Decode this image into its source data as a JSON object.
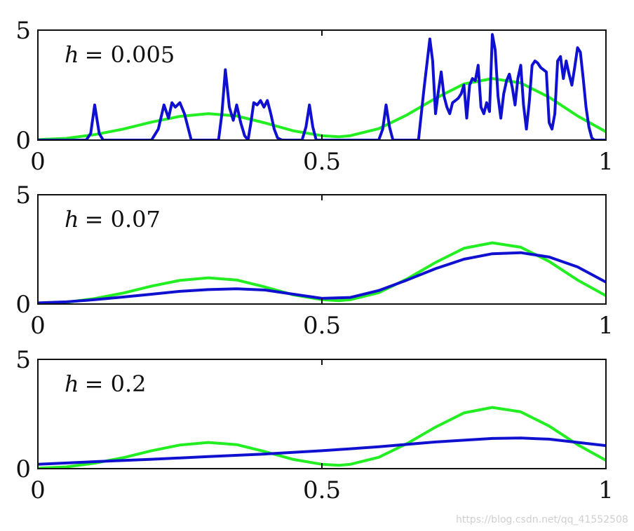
{
  "chart_data": [
    {
      "type": "line",
      "label": "h = 0.005",
      "label_var": "h",
      "label_value": "= 0.005",
      "xlim": [
        0,
        1
      ],
      "ylim": [
        0,
        5
      ],
      "xticks": [
        "0",
        "0.5",
        "1"
      ],
      "yticks": [
        "0",
        "5"
      ],
      "series": [
        {
          "color": "#22ee22",
          "x": [
            0,
            0.05,
            0.1,
            0.15,
            0.2,
            0.25,
            0.3,
            0.35,
            0.4,
            0.45,
            0.5,
            0.53,
            0.55,
            0.6,
            0.65,
            0.7,
            0.75,
            0.8,
            0.85,
            0.9,
            0.95,
            1.0
          ],
          "y": [
            0.02,
            0.08,
            0.25,
            0.5,
            0.82,
            1.08,
            1.2,
            1.1,
            0.78,
            0.42,
            0.2,
            0.15,
            0.2,
            0.52,
            1.15,
            1.9,
            2.55,
            2.8,
            2.6,
            1.95,
            1.1,
            0.38
          ]
        },
        {
          "color": "#1010d0",
          "x": [
            0,
            0.085,
            0.093,
            0.1,
            0.108,
            0.115,
            0.2,
            0.212,
            0.222,
            0.23,
            0.236,
            0.242,
            0.25,
            0.258,
            0.27,
            0.318,
            0.324,
            0.33,
            0.337,
            0.344,
            0.35,
            0.357,
            0.364,
            0.37,
            0.375,
            0.38,
            0.386,
            0.392,
            0.398,
            0.404,
            0.41,
            0.416,
            0.422,
            0.43,
            0.465,
            0.472,
            0.478,
            0.484,
            0.49,
            0.6,
            0.607,
            0.613,
            0.619,
            0.625,
            0.67,
            0.68,
            0.69,
            0.695,
            0.7,
            0.705,
            0.71,
            0.715,
            0.72,
            0.725,
            0.73,
            0.735,
            0.74,
            0.745,
            0.75,
            0.755,
            0.76,
            0.765,
            0.77,
            0.775,
            0.78,
            0.785,
            0.79,
            0.795,
            0.8,
            0.805,
            0.81,
            0.815,
            0.82,
            0.825,
            0.83,
            0.835,
            0.84,
            0.845,
            0.85,
            0.855,
            0.86,
            0.865,
            0.87,
            0.875,
            0.88,
            0.885,
            0.89,
            0.895,
            0.9,
            0.905,
            0.91,
            0.915,
            0.92,
            0.925,
            0.93,
            0.935,
            0.94,
            0.945,
            0.95,
            0.955,
            0.96,
            0.965,
            0.97,
            0.975,
            0.98,
            0.985,
            0.99,
            1.0
          ],
          "y": [
            0,
            0,
            0.3,
            1.6,
            0.3,
            0,
            0,
            0.5,
            1.6,
            1.0,
            1.7,
            1.5,
            1.7,
            1.2,
            0,
            0,
            1.2,
            3.2,
            1.5,
            0.9,
            1.6,
            0.8,
            0.2,
            0,
            0.8,
            1.7,
            1.6,
            1.8,
            1.5,
            1.8,
            1.2,
            0.5,
            0.1,
            0,
            0,
            0.6,
            1.6,
            0.6,
            0,
            0,
            0.5,
            1.6,
            0.6,
            0,
            0,
            2.4,
            4.6,
            3.6,
            1.2,
            2.2,
            3.1,
            2.0,
            1.5,
            1.2,
            1.7,
            1.8,
            1.9,
            2.1,
            2.5,
            1.0,
            2.5,
            2.8,
            2.7,
            3.4,
            1.5,
            1.2,
            1.7,
            1.3,
            4.8,
            4.1,
            2.0,
            1.0,
            2.1,
            2.7,
            3.0,
            2.4,
            1.6,
            2.8,
            3.4,
            1.6,
            0.5,
            1.7,
            3.4,
            3.6,
            3.5,
            3.3,
            3.2,
            3.1,
            0.8,
            0.5,
            1.2,
            3.6,
            3.8,
            2.8,
            3.6,
            3.0,
            2.5,
            3.3,
            4.2,
            4.0,
            2.8,
            1.5,
            0.6,
            0.1,
            0,
            0,
            0,
            0
          ]
        }
      ]
    },
    {
      "type": "line",
      "label": "h = 0.07",
      "label_var": "h",
      "label_value": "= 0.07",
      "xlim": [
        0,
        1
      ],
      "ylim": [
        0,
        5
      ],
      "xticks": [
        "0",
        "0.5",
        "1"
      ],
      "yticks": [
        "0",
        "5"
      ],
      "series": [
        {
          "color": "#22ee22",
          "x": [
            0,
            0.05,
            0.1,
            0.15,
            0.2,
            0.25,
            0.3,
            0.35,
            0.4,
            0.45,
            0.5,
            0.53,
            0.55,
            0.6,
            0.65,
            0.7,
            0.75,
            0.8,
            0.85,
            0.9,
            0.95,
            1.0
          ],
          "y": [
            0.02,
            0.08,
            0.25,
            0.5,
            0.82,
            1.08,
            1.2,
            1.1,
            0.78,
            0.42,
            0.2,
            0.15,
            0.2,
            0.52,
            1.15,
            1.9,
            2.55,
            2.8,
            2.6,
            1.95,
            1.1,
            0.38
          ]
        },
        {
          "color": "#1010d0",
          "x": [
            0,
            0.05,
            0.1,
            0.15,
            0.2,
            0.25,
            0.3,
            0.35,
            0.4,
            0.45,
            0.5,
            0.55,
            0.6,
            0.65,
            0.7,
            0.75,
            0.8,
            0.85,
            0.9,
            0.95,
            1.0
          ],
          "y": [
            0.05,
            0.1,
            0.2,
            0.32,
            0.45,
            0.58,
            0.66,
            0.7,
            0.64,
            0.45,
            0.26,
            0.3,
            0.62,
            1.1,
            1.62,
            2.05,
            2.3,
            2.35,
            2.15,
            1.7,
            1.0
          ]
        }
      ]
    },
    {
      "type": "line",
      "label": "h = 0.2",
      "label_var": "h",
      "label_value": "= 0.2",
      "xlim": [
        0,
        1
      ],
      "ylim": [
        0,
        5
      ],
      "xticks": [
        "0",
        "0.5",
        "1"
      ],
      "yticks": [
        "0",
        "5"
      ],
      "series": [
        {
          "color": "#22ee22",
          "x": [
            0,
            0.05,
            0.1,
            0.15,
            0.2,
            0.25,
            0.3,
            0.35,
            0.4,
            0.45,
            0.5,
            0.53,
            0.55,
            0.6,
            0.65,
            0.7,
            0.75,
            0.8,
            0.85,
            0.9,
            0.95,
            1.0
          ],
          "y": [
            0.02,
            0.08,
            0.25,
            0.5,
            0.82,
            1.08,
            1.2,
            1.1,
            0.78,
            0.42,
            0.2,
            0.15,
            0.2,
            0.52,
            1.15,
            1.9,
            2.55,
            2.8,
            2.6,
            1.95,
            1.1,
            0.38
          ]
        },
        {
          "color": "#1010d0",
          "x": [
            0,
            0.1,
            0.2,
            0.3,
            0.4,
            0.5,
            0.6,
            0.7,
            0.8,
            0.85,
            0.9,
            1.0
          ],
          "y": [
            0.2,
            0.32,
            0.43,
            0.55,
            0.67,
            0.82,
            1.0,
            1.22,
            1.38,
            1.4,
            1.35,
            1.05
          ]
        }
      ]
    }
  ],
  "watermark": "https://blog.csdn.net/qq_41552508",
  "colors": {
    "true_density": "#22ee22",
    "kde_estimate": "#1010d0",
    "axes": "#111111"
  }
}
